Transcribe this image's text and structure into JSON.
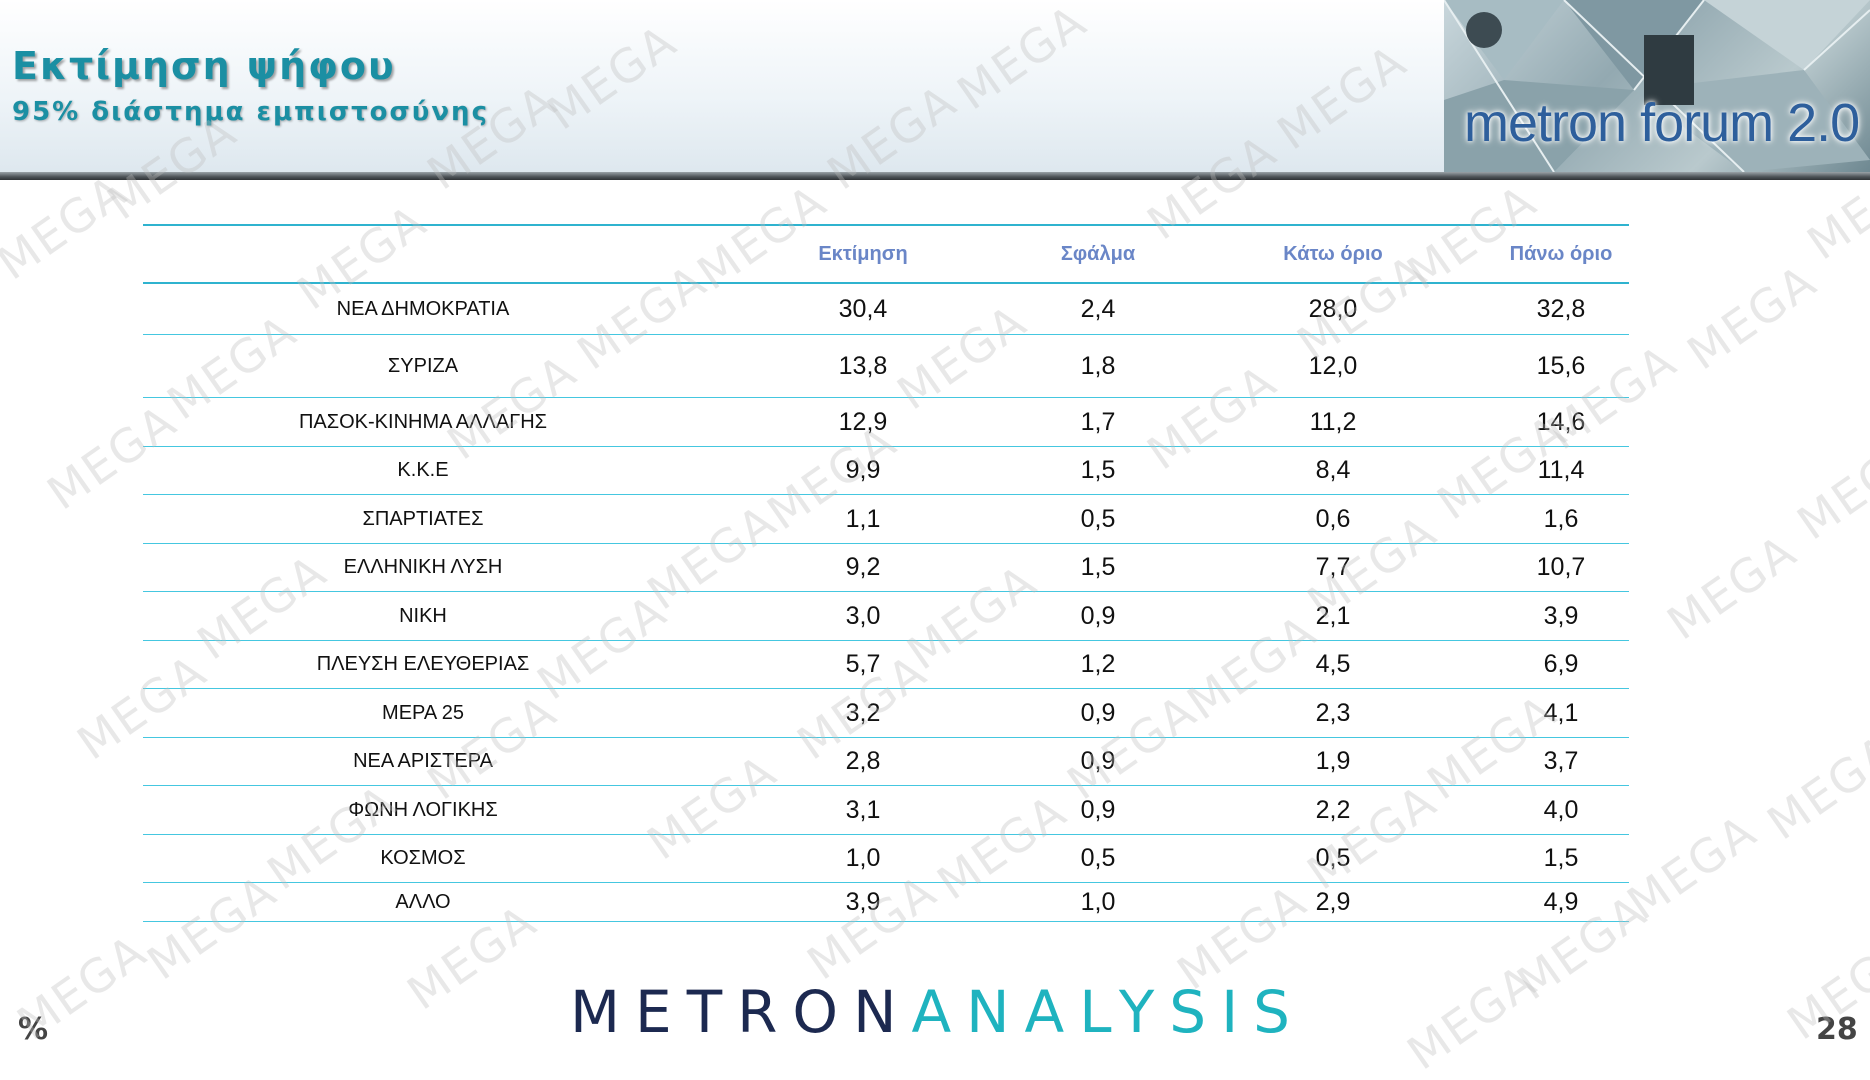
{
  "header": {
    "title": "Εκτίμηση ψήφου",
    "subtitle": "95% διάστημα εμπιστοσύνης",
    "banner_text": "metron forum 2.0"
  },
  "watermark_text": "MEGA",
  "table": {
    "columns": [
      "",
      "Εκτίμηση",
      "Σφάλμα",
      "Κάτω όριο",
      "Πάνω όριο"
    ],
    "rows": [
      {
        "party": "ΝΕΑ  ΔΗΜΟΚΡΑΤΙΑ",
        "estimate": "30,4",
        "error": "2,4",
        "lower": "28,0",
        "upper": "32,8"
      },
      {
        "party": "ΣΥΡΙΖΑ",
        "estimate": "13,8",
        "error": "1,8",
        "lower": "12,0",
        "upper": "15,6"
      },
      {
        "party": "ΠΑΣΟΚ-ΚΙΝΗΜΑ  ΑΛΛΑΓΗΣ",
        "estimate": "12,9",
        "error": "1,7",
        "lower": "11,2",
        "upper": "14,6"
      },
      {
        "party": "Κ.Κ.Ε",
        "estimate": "9,9",
        "error": "1,5",
        "lower": "8,4",
        "upper": "11,4"
      },
      {
        "party": "ΣΠΑΡΤΙΑΤΕΣ",
        "estimate": "1,1",
        "error": "0,5",
        "lower": "0,6",
        "upper": "1,6"
      },
      {
        "party": "ΕΛΛΗΝΙΚΗ  ΛΥΣΗ",
        "estimate": "9,2",
        "error": "1,5",
        "lower": "7,7",
        "upper": "10,7"
      },
      {
        "party": "ΝΙΚΗ",
        "estimate": "3,0",
        "error": "0,9",
        "lower": "2,1",
        "upper": "3,9"
      },
      {
        "party": "ΠΛΕΥΣΗ ΕΛΕΥΘΕΡΙΑΣ",
        "estimate": "5,7",
        "error": "1,2",
        "lower": "4,5",
        "upper": "6,9"
      },
      {
        "party": "ΜΕΡΑ 25",
        "estimate": "3,2",
        "error": "0,9",
        "lower": "2,3",
        "upper": "4,1"
      },
      {
        "party": "ΝΕΑ ΑΡΙΣΤΕΡΑ",
        "estimate": "2,8",
        "error": "0,9",
        "lower": "1,9",
        "upper": "3,7"
      },
      {
        "party": "ΦΩΝΗ ΛΟΓΙΚΗΣ",
        "estimate": "3,1",
        "error": "0,9",
        "lower": "2,2",
        "upper": "4,0"
      },
      {
        "party": "ΚΟΣΜΟΣ",
        "estimate": "1,0",
        "error": "0,5",
        "lower": "0,5",
        "upper": "1,5"
      },
      {
        "party": "ΑΛΛΟ",
        "estimate": "3,9",
        "error": "1,0",
        "lower": "2,9",
        "upper": "4,9"
      }
    ]
  },
  "footer": {
    "logo_part1": "METRON",
    "logo_part2": "ANALYSIS",
    "unit_symbol": "%",
    "page_number": "28"
  },
  "colors": {
    "title": "#1b8fa3",
    "table_rule": "#45c7e0",
    "header_label": "#6a86c7",
    "logo_dark": "#1c2950",
    "logo_teal": "#1fb3bf"
  }
}
